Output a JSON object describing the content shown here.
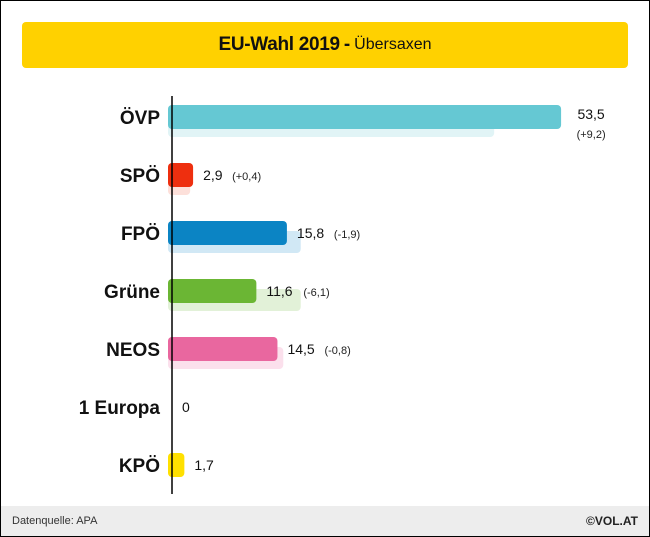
{
  "header": {
    "title": "EU-Wahl 2019",
    "separator": "-",
    "subtitle": "Übersaxen"
  },
  "chart_data": {
    "type": "bar",
    "orientation": "horizontal",
    "title": "EU-Wahl 2019 - Übersaxen",
    "categories": [
      "ÖVP",
      "SPÖ",
      "FPÖ",
      "Grüne",
      "NEOS",
      "1 Europa",
      "KPÖ"
    ],
    "series": [
      {
        "values": [
          53.5,
          2.9,
          15.8,
          11.6,
          14.5,
          0,
          1.7
        ]
      },
      {
        "values": [
          44.3,
          2.5,
          17.7,
          17.7,
          15.3,
          null,
          null
        ]
      }
    ],
    "value_labels": [
      "53,5",
      "2,9",
      "15,8",
      "11,6",
      "14,5",
      "0",
      "1,7"
    ],
    "change_labels": [
      "(+9,2)",
      "(+0,4)",
      "(-1,9)",
      "(-6,1)",
      "(-0,8)",
      "",
      ""
    ],
    "colors": [
      "#65c8d3",
      "#ee2f0f",
      "#0b84c4",
      "#6bb634",
      "#e9679f",
      "#cccccc",
      "#ffe000"
    ],
    "previous_colors": [
      "#e1f4f6",
      "#fde0da",
      "#d1e8f5",
      "#e2f1d8",
      "#fbe0ec",
      "#eeeeee",
      "#fffbcc"
    ],
    "xlim": [
      0,
      55
    ],
    "grid": false,
    "legend": "none"
  },
  "footer": {
    "source": "Datenquelle: APA",
    "brand": "©VOL.AT"
  }
}
